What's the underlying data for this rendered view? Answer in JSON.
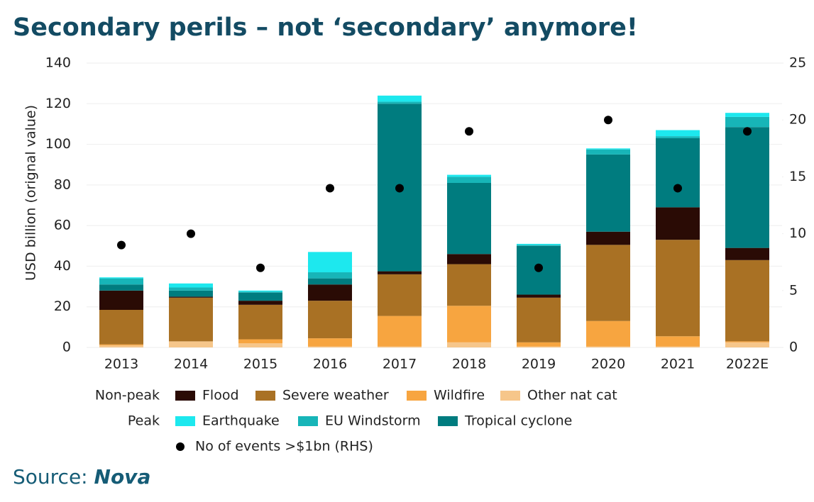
{
  "chart_data": {
    "type": "bar",
    "title": "Secondary perils – not ‘secondary’ anymore!",
    "ylabel": "USD billion (orignal value)",
    "source_label": "Source:",
    "source_name": "Nova",
    "legend_groups": [
      "Non-peak",
      "Peak"
    ],
    "categories": [
      "2013",
      "2014",
      "2015",
      "2016",
      "2017",
      "2018",
      "2019",
      "2020",
      "2021",
      "2022E"
    ],
    "series": [
      {
        "name": "Other nat cat",
        "color": "#f6c68a",
        "values": [
          1,
          3,
          2,
          0.5,
          0.5,
          2.5,
          0.5,
          0.5,
          0.5,
          2.5
        ]
      },
      {
        "name": "Wildfire",
        "color": "#f7a540",
        "values": [
          0.5,
          0,
          2,
          4,
          15,
          18,
          2,
          12.5,
          5,
          0.5
        ]
      },
      {
        "name": "Severe weather",
        "color": "#a97124",
        "values": [
          17,
          21.5,
          17,
          18.5,
          20.5,
          20.5,
          22,
          37.5,
          47.5,
          40
        ]
      },
      {
        "name": "Flood",
        "color": "#2a0b05",
        "values": [
          9.5,
          0.5,
          2,
          8,
          1.5,
          5,
          1.5,
          6.5,
          16,
          6
        ]
      },
      {
        "name": "Tropical cyclone",
        "color": "#007c7f",
        "values": [
          3,
          3,
          4,
          3,
          82.5,
          35,
          24,
          38,
          34,
          59.5
        ]
      },
      {
        "name": "EU Windstorm",
        "color": "#17b5b8",
        "values": [
          3,
          1.5,
          0.5,
          3,
          1,
          3,
          0.5,
          2.5,
          1,
          5
        ]
      },
      {
        "name": "Earthquake",
        "color": "#1de8ee",
        "values": [
          0.5,
          2,
          0.5,
          10,
          3,
          1,
          0.5,
          0.5,
          3,
          2
        ]
      },
      {
        "name": "No of events >$1bn (RHS)",
        "color": "#000000",
        "type": "scatter",
        "axis": "y2",
        "values": [
          9,
          10,
          7,
          14,
          14,
          19,
          7,
          20,
          14,
          19
        ]
      }
    ],
    "ylim": [
      0,
      140
    ],
    "yticks": [
      0,
      20,
      40,
      60,
      80,
      100,
      120,
      140
    ],
    "y2lim": [
      0,
      25
    ],
    "y2ticks": [
      0,
      5,
      10,
      15,
      20,
      25
    ],
    "grid": true
  }
}
